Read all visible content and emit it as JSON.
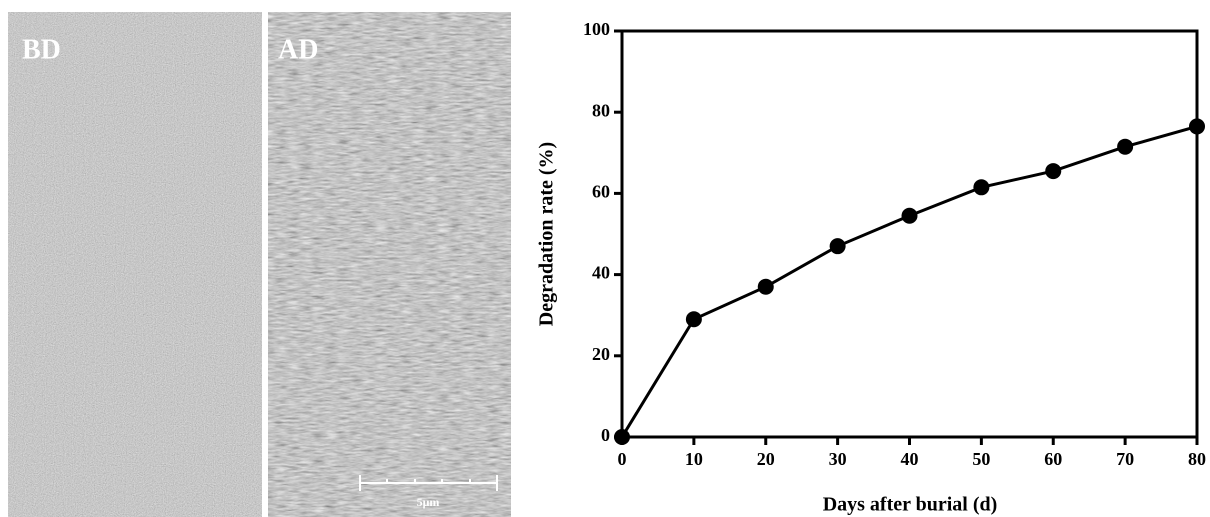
{
  "micrographs": {
    "left_label": "BD",
    "right_label": "AD",
    "scale_bar": "5μm"
  },
  "chart_data": {
    "type": "line",
    "x_label": "Days after burial (d)",
    "y_label": "Degradation rate (%)",
    "x": [
      0,
      10,
      20,
      30,
      40,
      50,
      60,
      70,
      80
    ],
    "series": [
      {
        "color": "#000000",
        "values": [
          0,
          29,
          37,
          47,
          54.5,
          61.5,
          65.5,
          71.5,
          76.5
        ]
      }
    ],
    "xlim": [
      0,
      80
    ],
    "xticks": [
      0,
      10,
      20,
      30,
      40,
      50,
      60,
      70,
      80
    ],
    "ylim": [
      0,
      100
    ],
    "yticks": [
      0,
      20,
      40,
      60,
      80,
      100
    ]
  }
}
